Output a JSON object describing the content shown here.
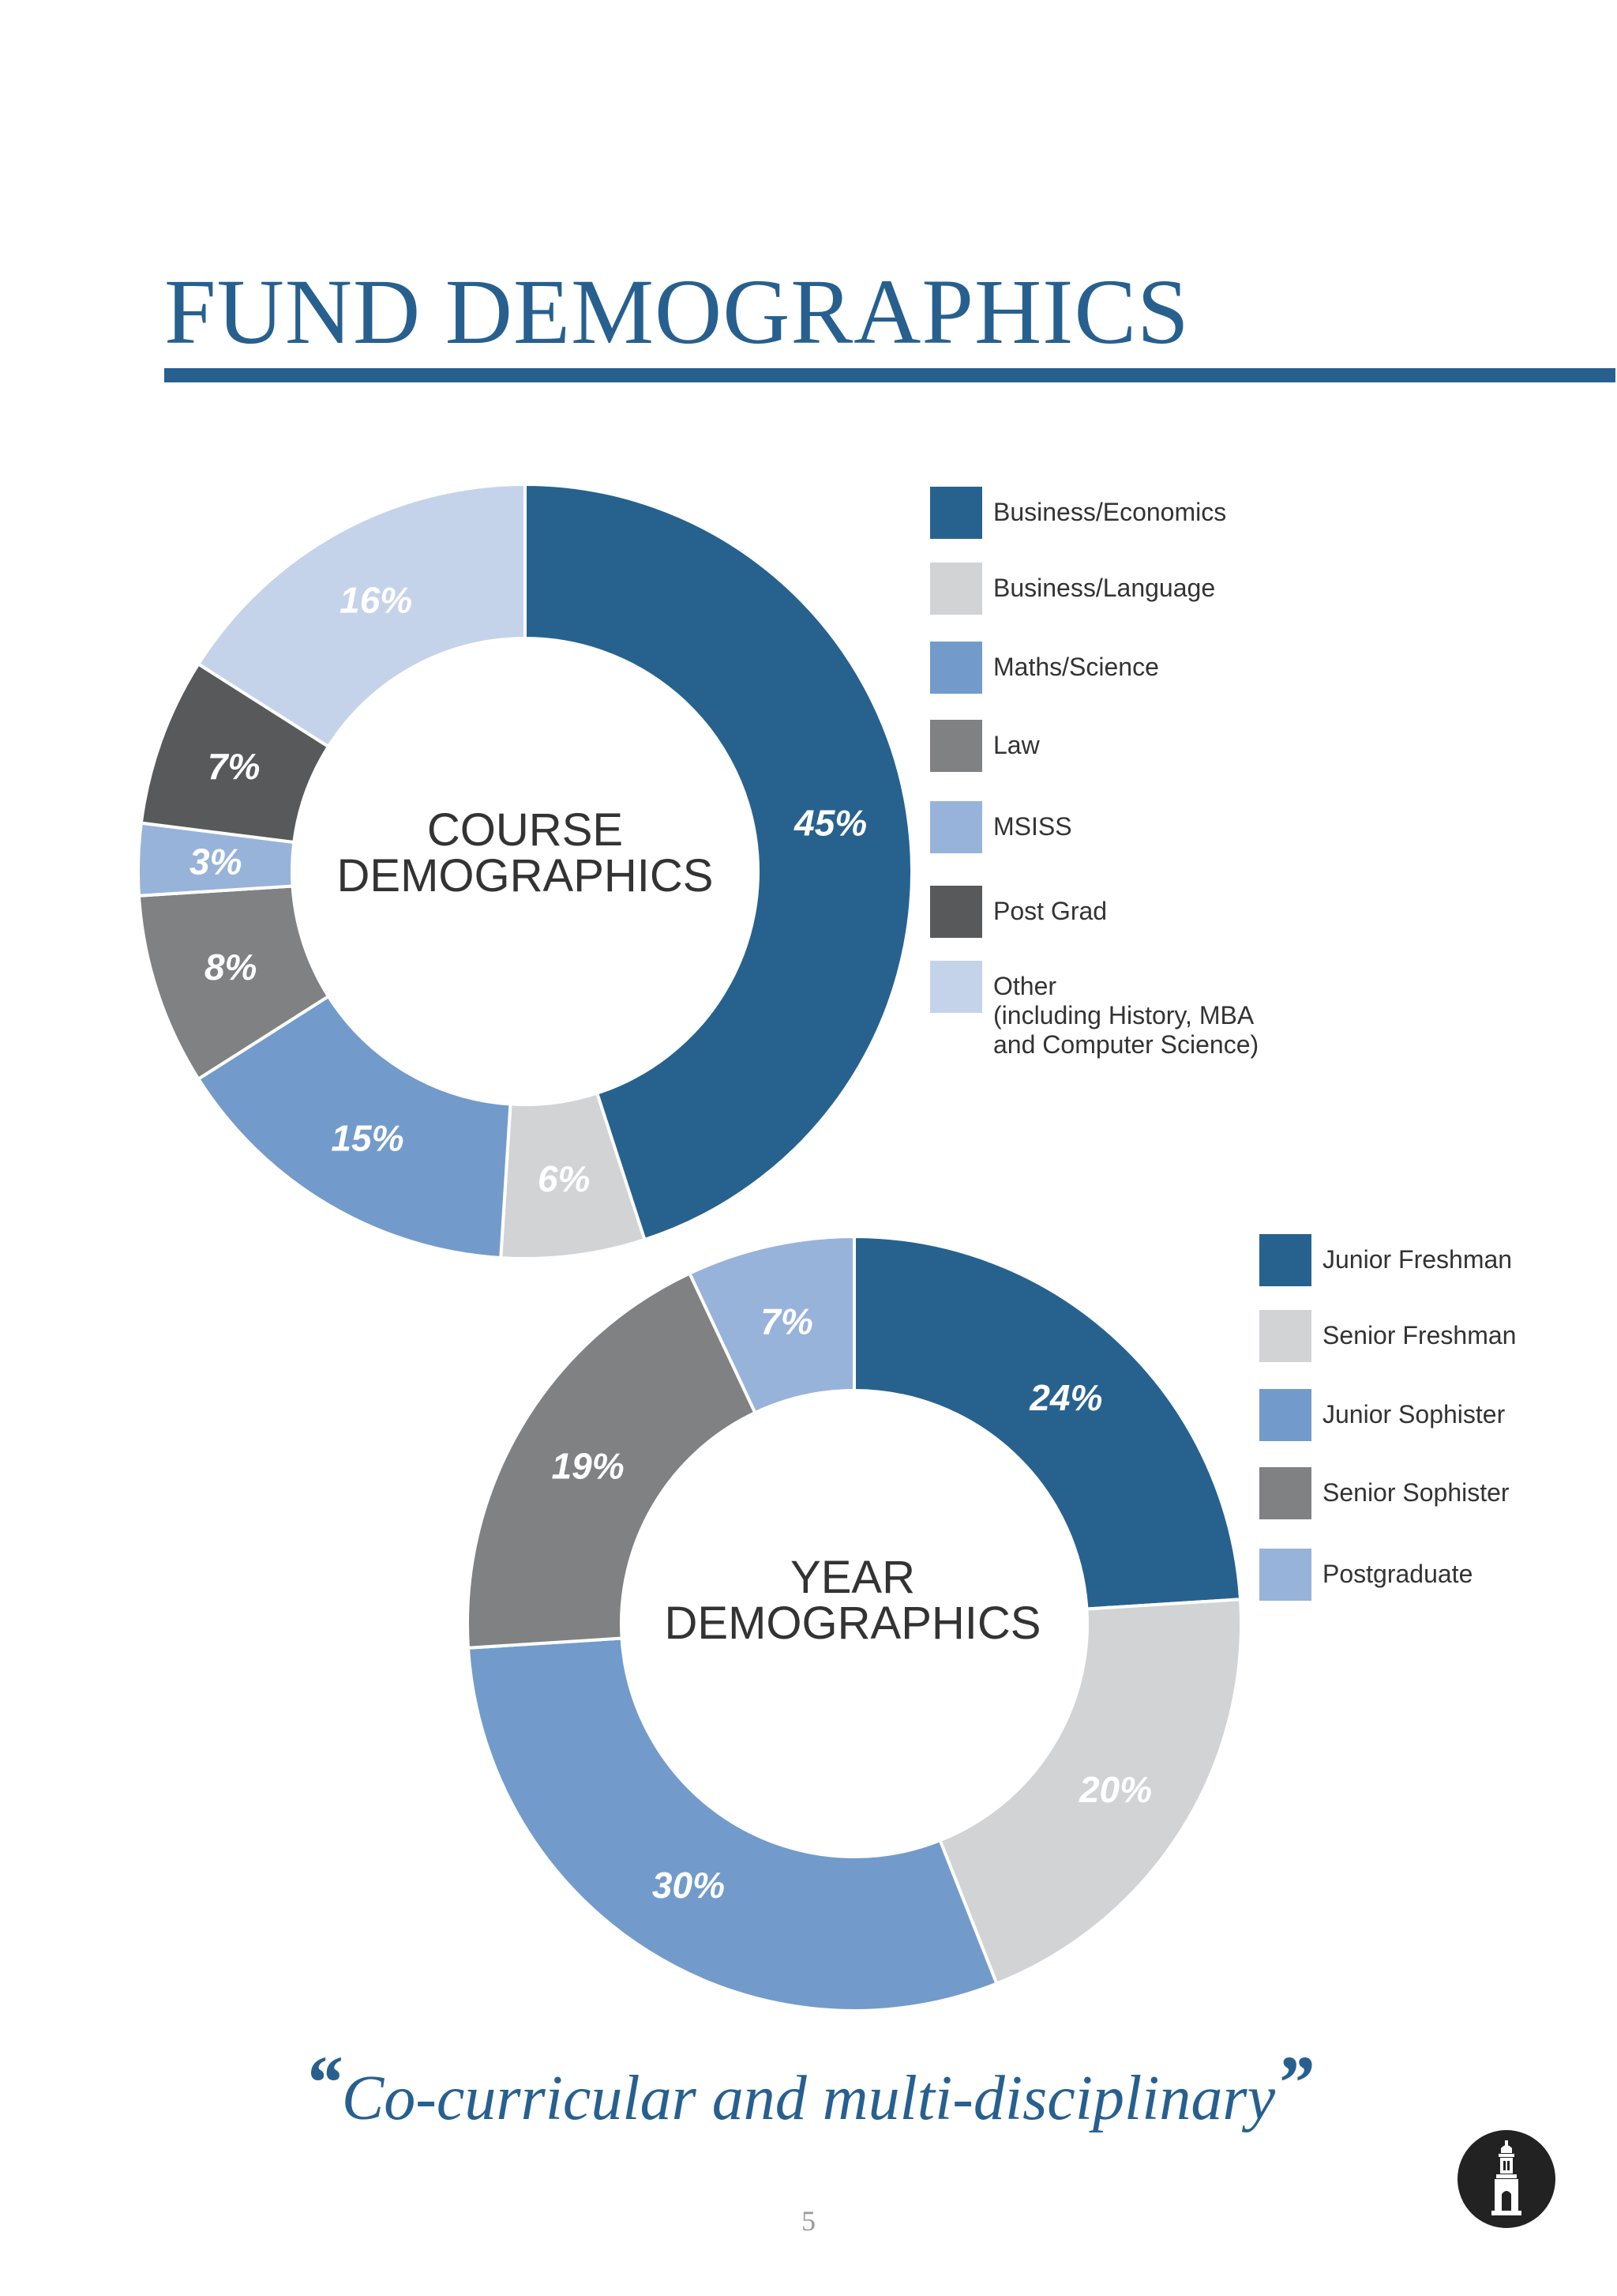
{
  "page": {
    "title": "FUND DEMOGRAPHICS",
    "quote_open": "“",
    "quote_text": "Co-curricular and multi-disciplinary",
    "quote_close": "”",
    "page_number": "5",
    "logo_icon": "campanile-tower-icon"
  },
  "colors": {
    "accent": "#27608f",
    "label_text": "#ffffff"
  },
  "chart_data": [
    {
      "type": "pie",
      "variant": "donut",
      "center_label": [
        "COURSE",
        "DEMOGRAPHICS"
      ],
      "legend_position": "right",
      "slices": [
        {
          "label": "Business/Economics",
          "value": 45,
          "data_label": "45%",
          "color": "#27628f"
        },
        {
          "label": "Business/Language",
          "value": 6,
          "data_label": "6%",
          "color": "#d2d3d5"
        },
        {
          "label": "Maths/Science",
          "value": 15,
          "data_label": "15%",
          "color": "#729bcb"
        },
        {
          "label": "Law",
          "value": 8,
          "data_label": "8%",
          "color": "#808183"
        },
        {
          "label": "MSISS",
          "value": 3,
          "data_label": "3%",
          "color": "#98b3da"
        },
        {
          "label": "Post Grad",
          "value": 7,
          "data_label": "7%",
          "color": "#58595b"
        },
        {
          "label": "Other\n(including History, MBA\nand Computer Science)",
          "value": 16,
          "data_label": "16%",
          "color": "#c5d3ea"
        }
      ]
    },
    {
      "type": "pie",
      "variant": "donut",
      "center_label": [
        "YEAR",
        "DEMOGRAPHICS"
      ],
      "legend_position": "right",
      "slices": [
        {
          "label": "Junior Freshman",
          "value": 24,
          "data_label": "24%",
          "color": "#27628f"
        },
        {
          "label": "Senior Freshman",
          "value": 20,
          "data_label": "20%",
          "color": "#d2d3d5"
        },
        {
          "label": "Junior Sophister",
          "value": 30,
          "data_label": "30%",
          "color": "#729bcb"
        },
        {
          "label": "Senior Sophister",
          "value": 19,
          "data_label": "19%",
          "color": "#808183"
        },
        {
          "label": "Postgraduate",
          "value": 7,
          "data_label": "7%",
          "color": "#98b3da"
        }
      ]
    }
  ]
}
